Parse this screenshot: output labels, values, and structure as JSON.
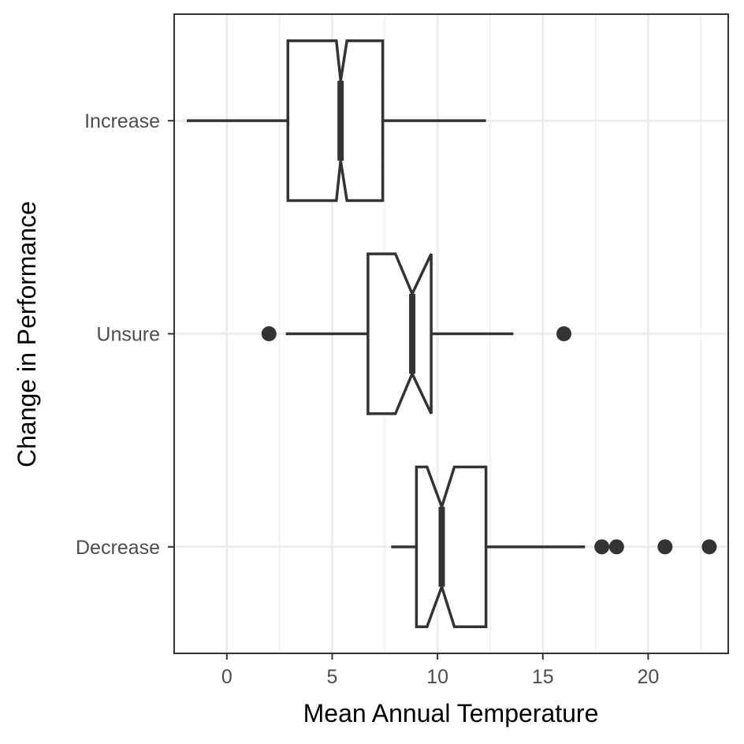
{
  "chart_data": {
    "type": "boxplot",
    "orientation": "horizontal",
    "notched": true,
    "xlabel": "Mean Annual Temperature",
    "ylabel": "Change in Performance",
    "xlim": [
      -2.5,
      23.8
    ],
    "x_ticks": [
      0,
      5,
      10,
      15,
      20
    ],
    "x_tick_labels": [
      "0",
      "5",
      "10",
      "15",
      "20"
    ],
    "grid": true,
    "categories": [
      "Increase",
      "Unsure",
      "Decrease"
    ],
    "boxes": [
      {
        "category": "Increase",
        "whisker_low": -1.9,
        "q1": 2.9,
        "median": 5.4,
        "q3": 7.4,
        "whisker_high": 12.3,
        "notch_low": 5.2,
        "notch_high": 5.7,
        "outliers": []
      },
      {
        "category": "Unsure",
        "whisker_low": 2.8,
        "q1": 6.7,
        "median": 8.8,
        "q3": 9.7,
        "whisker_high": 13.6,
        "notch_low": 8.0,
        "notch_high": 9.7,
        "outliers": [
          2.0,
          16.0
        ]
      },
      {
        "category": "Decrease",
        "whisker_low": 7.8,
        "q1": 9.0,
        "median": 10.2,
        "q3": 12.3,
        "whisker_high": 17.0,
        "notch_low": 9.5,
        "notch_high": 10.8,
        "outliers": [
          17.8,
          18.5,
          20.8,
          22.9
        ]
      }
    ]
  }
}
